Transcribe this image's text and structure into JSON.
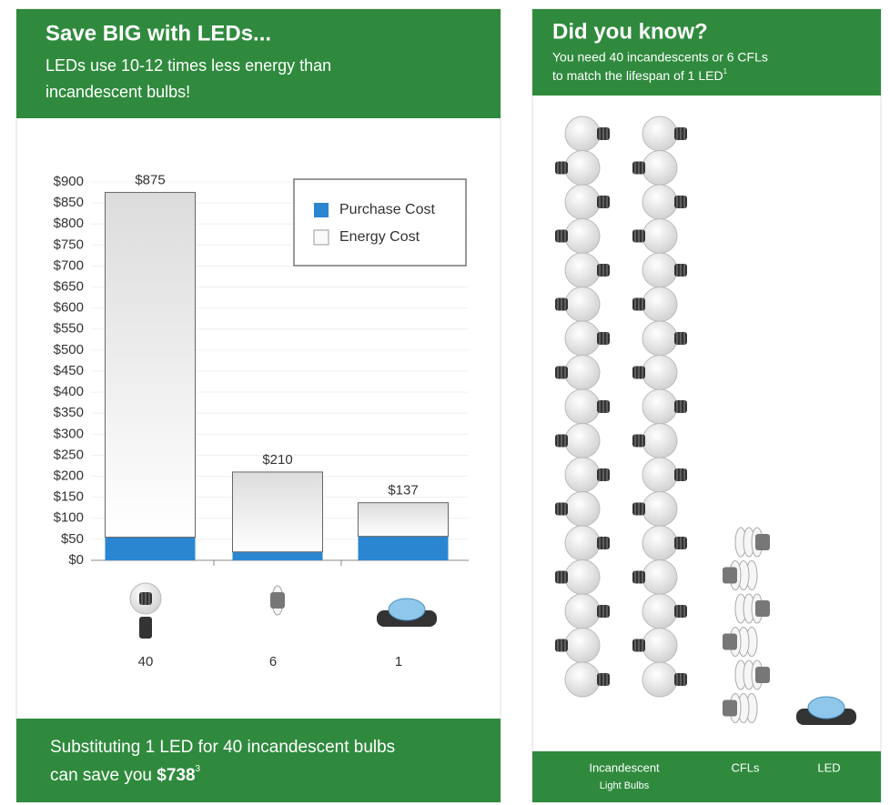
{
  "left": {
    "title": "Save BIG with LEDs...",
    "subtitle_lines": [
      "LEDs use 10-12 times less energy than",
      "incandescent bulbs!"
    ],
    "footer_line": "Substituting 1 LED for 40 incandescent bulbs",
    "footer_prefix": "can save you",
    "footer_amount": "$738",
    "footer_note": "3"
  },
  "chart_data": {
    "type": "bar",
    "stacked": true,
    "categories": [
      "40",
      "6",
      "1"
    ],
    "series": [
      {
        "name": "Purchase Cost",
        "color": "#2a86d1",
        "values": [
          55,
          20,
          57
        ]
      },
      {
        "name": "Energy Cost",
        "color": "#f2f2f2",
        "values": [
          820,
          190,
          80
        ]
      }
    ],
    "totals": [
      875,
      210,
      137
    ],
    "total_labels": [
      "$875",
      "$210",
      "$137"
    ],
    "ylim": [
      0,
      900
    ],
    "yticks": [
      {
        "value": 0,
        "label": "$0"
      },
      {
        "value": 50,
        "label": "$50"
      },
      {
        "value": 100,
        "label": "$100"
      },
      {
        "value": 150,
        "label": "$150"
      },
      {
        "value": 200,
        "label": "$200"
      },
      {
        "value": 250,
        "label": "$250"
      },
      {
        "value": 300,
        "label": "$300"
      },
      {
        "value": 350,
        "label": "$350"
      },
      {
        "value": 400,
        "label": "$400"
      },
      {
        "value": 450,
        "label": "$450"
      },
      {
        "value": 500,
        "label": "$500"
      },
      {
        "value": 550,
        "label": "$550"
      },
      {
        "value": 600,
        "label": "$600"
      },
      {
        "value": 650,
        "label": "$650"
      },
      {
        "value": 700,
        "label": "$700"
      },
      {
        "value": 750,
        "label": "$750"
      },
      {
        "value": 800,
        "label": "$800"
      },
      {
        "value": 850,
        "label": "$850"
      },
      {
        "value": 900,
        "label": "$900"
      }
    ],
    "grid": true,
    "legend": "upper right"
  },
  "right": {
    "title": "Did you know?",
    "subtitle_lines": [
      "You need 40 incandescents or 6 CFLs",
      "to match the lifespan of 1 LED"
    ],
    "subtitle_note": "1",
    "incandescent_lines": [
      "Incandescent",
      "Light Bulbs"
    ],
    "cfl_label": "CFLs",
    "led_label": "LED"
  }
}
